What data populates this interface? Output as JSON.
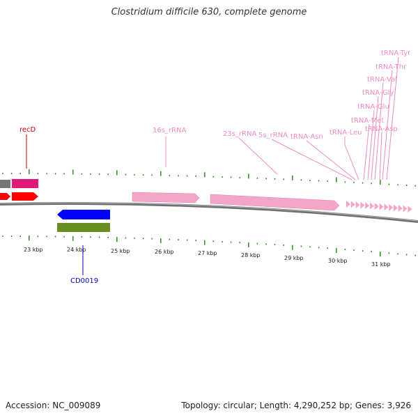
{
  "title": "Clostridium difficile 630, complete genome",
  "footer": {
    "accession": "Accession: NC_009089",
    "info": "Topology: circular; Length: 4,290,252 bp; Genes: 3,926"
  },
  "scale_labels": [
    "23 kbp",
    "24 kbp",
    "25 kbp",
    "26 kbp",
    "27 kbp",
    "28 kbp",
    "29 kbp",
    "30 kbp",
    "31 kbp"
  ],
  "gene_labels": {
    "recD": "recD",
    "CD0019": "CD0019",
    "rna16s": "16s_rRNA",
    "rna23s": "23s_rRNA",
    "rna5s": "5s_rRNA",
    "trnaAsn": "tRNA-Asn",
    "trnaLeu": "tRNA-Leu",
    "trnaAsp": "tRNA-Asp",
    "trnaMet": "tRNA-Met",
    "trnaGlu": "tRNA-Glu",
    "trnaGly": "tRNA-Gly",
    "trnaVal": "tRNA-Val",
    "trnaThr": "tRNA-Thr",
    "trnaTyr": "tRNA-Tyr"
  },
  "colors": {
    "tick_green": "#2e8b1f",
    "forward_red": "#ff0000",
    "magenta": "#e0187a",
    "rrna_pink": "#f4a6c9",
    "cds_blue": "#0000ff",
    "olive": "#6b8e23",
    "backbone": "#7f7f7f",
    "label_pink": "#f08cbf",
    "label_red": "#c00000",
    "label_blue": "#0000cc"
  }
}
